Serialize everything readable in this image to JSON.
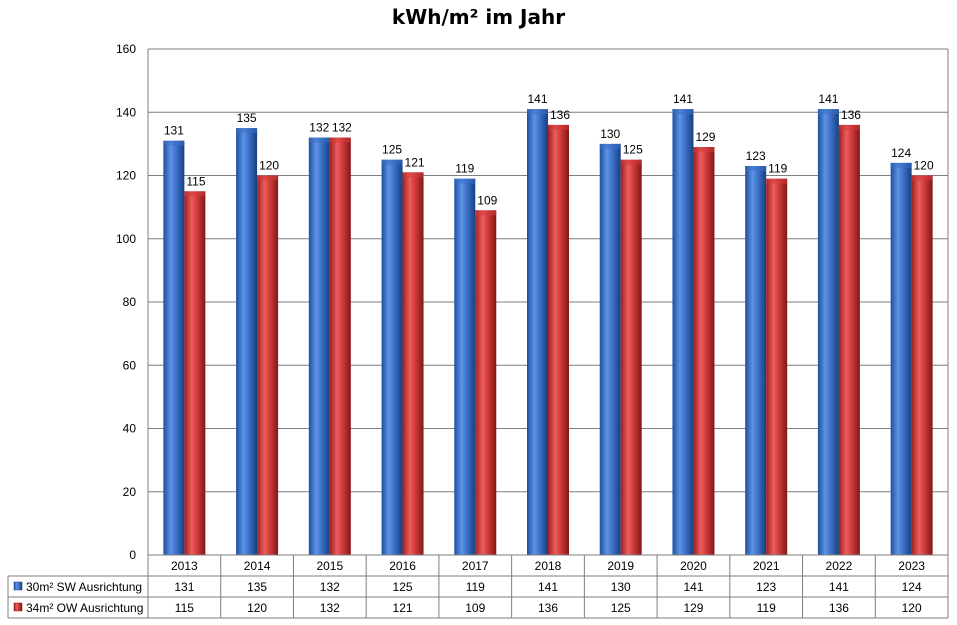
{
  "chart_data": {
    "type": "bar",
    "title": "kWh/m² im Jahr",
    "xlabel": "",
    "ylabel": "",
    "ylim": [
      0,
      160
    ],
    "yticks": [
      0,
      20,
      40,
      60,
      80,
      100,
      120,
      140,
      160
    ],
    "grid": true,
    "legend": "data-table",
    "categories": [
      "2013",
      "2014",
      "2015",
      "2016",
      "2017",
      "2018",
      "2019",
      "2020",
      "2021",
      "2022",
      "2023"
    ],
    "series": [
      {
        "name": "30m² SW Ausrichtung",
        "color": "#3a6fc4",
        "values": [
          131,
          135,
          132,
          125,
          119,
          141,
          130,
          141,
          123,
          141,
          124
        ]
      },
      {
        "name": "34m² OW Ausrichtung",
        "color": "#d23b3b",
        "values": [
          115,
          120,
          132,
          121,
          109,
          136,
          125,
          129,
          119,
          136,
          120
        ]
      }
    ]
  }
}
